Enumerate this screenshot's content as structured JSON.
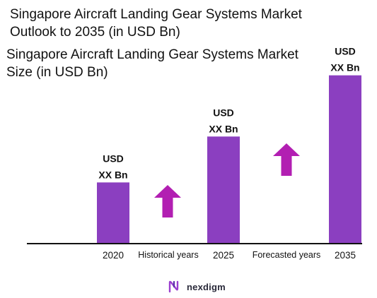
{
  "title": "Singapore Aircraft Landing Gear Systems Market Outlook to 2035 (in USD Bn)",
  "subtitle": "Singapore Aircraft Landing Gear Systems Market Size (in USD Bn)",
  "brand": {
    "name": "nexdigm",
    "logo_icon": "nexdigm-n-logo"
  },
  "colors": {
    "bar": "#8b3fc0",
    "arrow": "#b21fb2",
    "axis": "#111111"
  },
  "chart_data": {
    "type": "bar",
    "categories": [
      "2020",
      "2025",
      "2035"
    ],
    "values": [
      1.0,
      1.75,
      2.75
    ],
    "value_labels": [
      [
        "USD",
        "XX Bn"
      ],
      [
        "USD",
        "XX Bn"
      ],
      [
        "USD",
        "XX Bn"
      ]
    ],
    "period_labels": [
      "Historical years",
      "Forecasted years"
    ],
    "trend_arrows": [
      "up-arrow",
      "up-arrow"
    ],
    "ylim": [
      0,
      3
    ],
    "grid": false,
    "legend": "none"
  }
}
